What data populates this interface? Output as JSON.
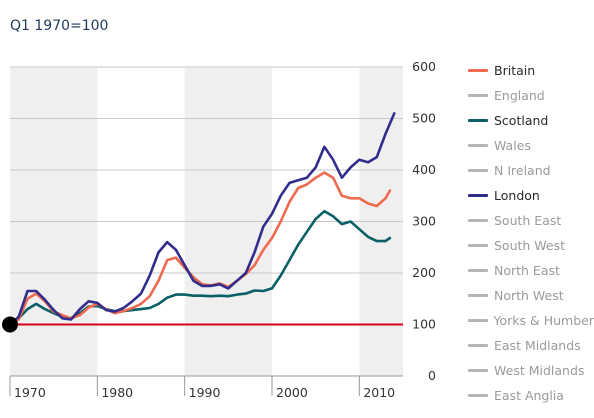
{
  "subtitle": "Q1 1970=100",
  "chart_data": {
    "type": "line",
    "subtitle": "Q1 1970=100",
    "x_ticks": [
      1970,
      1980,
      1990,
      2000,
      2010
    ],
    "y_ticks": [
      0,
      100,
      200,
      300,
      400,
      500,
      600
    ],
    "xlim": [
      1970,
      2015
    ],
    "ylim": [
      0,
      600
    ],
    "grid": "horizontal",
    "shaded_decades": [
      [
        1970,
        1980
      ],
      [
        1990,
        2000
      ],
      [
        2010,
        2015
      ]
    ],
    "baseline": {
      "value": 100,
      "color": "#d9001b"
    },
    "marker": {
      "x": 1970,
      "y": 100
    },
    "legend_position": "right",
    "series": [
      {
        "name": "Britain",
        "color": "#ef6a4f",
        "active": true,
        "x": [
          1970,
          1971,
          1972,
          1973,
          1974,
          1975,
          1976,
          1977,
          1978,
          1979,
          1980,
          1981,
          1982,
          1983,
          1984,
          1985,
          1986,
          1987,
          1988,
          1989,
          1990,
          1991,
          1992,
          1993,
          1994,
          1995,
          1996,
          1997,
          1998,
          1999,
          2000,
          2001,
          2002,
          2003,
          2004,
          2005,
          2006,
          2007,
          2008,
          2009,
          2010,
          2011,
          2012,
          2013,
          2013.5
        ],
        "values": [
          100,
          110,
          150,
          160,
          145,
          125,
          118,
          112,
          118,
          133,
          140,
          130,
          122,
          126,
          132,
          140,
          155,
          185,
          225,
          230,
          210,
          192,
          178,
          176,
          180,
          173,
          185,
          198,
          215,
          245,
          268,
          300,
          338,
          365,
          372,
          385,
          395,
          385,
          350,
          345,
          345,
          335,
          330,
          345,
          360
        ]
      },
      {
        "name": "England",
        "color": "#b5b5b5",
        "active": false
      },
      {
        "name": "Scotland",
        "color": "#0b5f66",
        "active": true,
        "x": [
          1970,
          1971,
          1972,
          1973,
          1974,
          1975,
          1976,
          1977,
          1978,
          1979,
          1980,
          1981,
          1982,
          1983,
          1984,
          1985,
          1986,
          1987,
          1988,
          1989,
          1990,
          1991,
          1992,
          1993,
          1994,
          1995,
          1996,
          1997,
          1998,
          1999,
          2000,
          2001,
          2002,
          2003,
          2004,
          2005,
          2006,
          2007,
          2008,
          2009,
          2010,
          2011,
          2012,
          2013,
          2013.5
        ],
        "values": [
          100,
          112,
          130,
          140,
          130,
          122,
          115,
          112,
          122,
          135,
          136,
          130,
          126,
          126,
          128,
          130,
          132,
          140,
          152,
          158,
          158,
          156,
          156,
          155,
          156,
          155,
          158,
          160,
          166,
          165,
          170,
          195,
          225,
          255,
          280,
          305,
          320,
          310,
          295,
          300,
          285,
          270,
          262,
          262,
          268
        ]
      },
      {
        "name": "Wales",
        "color": "#b5b5b5",
        "active": false
      },
      {
        "name": "N Ireland",
        "color": "#b5b5b5",
        "active": false
      },
      {
        "name": "London",
        "color": "#322d8d",
        "active": true,
        "x": [
          1970,
          1971,
          1972,
          1973,
          1974,
          1975,
          1976,
          1977,
          1978,
          1979,
          1980,
          1981,
          1982,
          1983,
          1984,
          1985,
          1986,
          1987,
          1988,
          1989,
          1990,
          1991,
          1992,
          1993,
          1994,
          1995,
          1996,
          1997,
          1998,
          1999,
          2000,
          2001,
          2002,
          2003,
          2004,
          2005,
          2006,
          2007,
          2008,
          2009,
          2010,
          2011,
          2012,
          2013,
          2014
        ],
        "values": [
          100,
          115,
          165,
          165,
          148,
          128,
          112,
          110,
          130,
          145,
          142,
          128,
          125,
          132,
          145,
          160,
          195,
          240,
          260,
          245,
          215,
          185,
          175,
          175,
          178,
          170,
          185,
          200,
          240,
          290,
          315,
          350,
          375,
          380,
          385,
          405,
          445,
          420,
          385,
          405,
          420,
          415,
          425,
          470,
          510
        ]
      },
      {
        "name": "South East",
        "color": "#b5b5b5",
        "active": false
      },
      {
        "name": "South West",
        "color": "#b5b5b5",
        "active": false
      },
      {
        "name": "North East",
        "color": "#b5b5b5",
        "active": false
      },
      {
        "name": "North West",
        "color": "#b5b5b5",
        "active": false
      },
      {
        "name": "Yorks & Humber",
        "color": "#b5b5b5",
        "active": false
      },
      {
        "name": "East Midlands",
        "color": "#b5b5b5",
        "active": false
      },
      {
        "name": "West Midlands",
        "color": "#b5b5b5",
        "active": false
      },
      {
        "name": "East Anglia",
        "color": "#b5b5b5",
        "active": false
      }
    ]
  }
}
